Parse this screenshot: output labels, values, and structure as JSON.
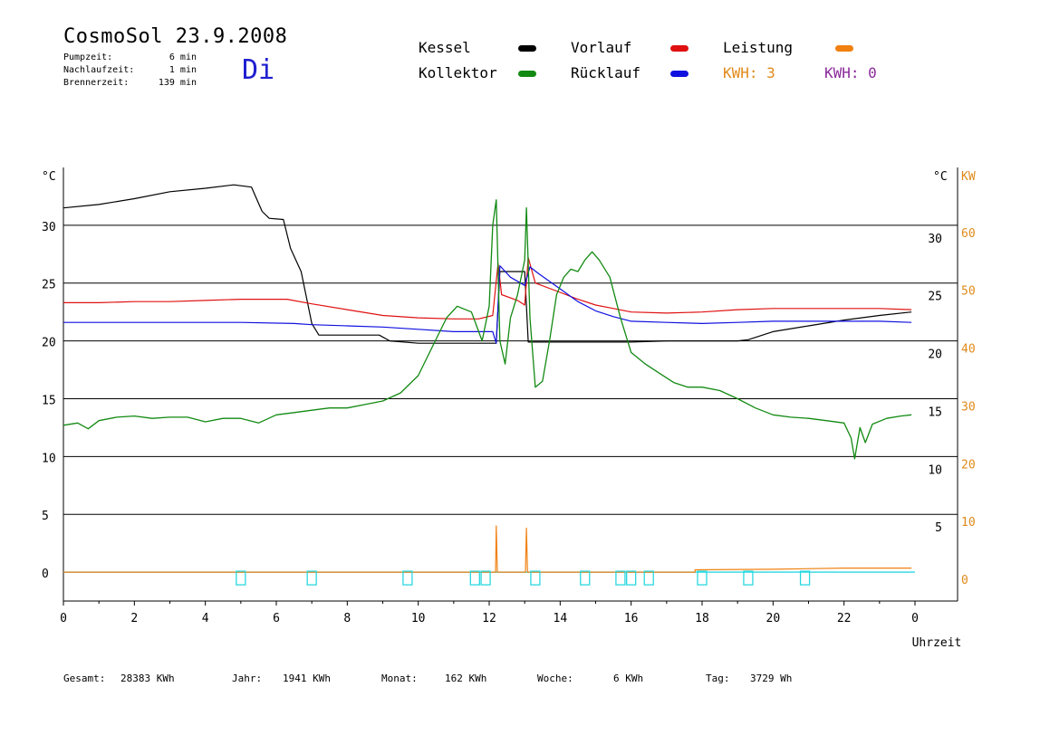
{
  "header": {
    "title": "CosmoSol 23.9.2008",
    "day": "Di",
    "stats": [
      {
        "label": "Pumpzeit:",
        "value": "6 min"
      },
      {
        "label": "Nachlaufzeit:",
        "value": "1 min"
      },
      {
        "label": "Brennerzeit:",
        "value": "139 min"
      }
    ]
  },
  "legend": {
    "kessel": {
      "label": "Kessel",
      "color": "#000000"
    },
    "kollektor": {
      "label": "Kollektor",
      "color": "#128a12"
    },
    "vorlauf": {
      "label": "Vorlauf",
      "color": "#e01010"
    },
    "ruecklauf": {
      "label": "Rücklauf",
      "color": "#1010e0"
    },
    "leistung": {
      "label": "Leistung",
      "color": "#f08010"
    },
    "kwh1": {
      "label": "KWH: 3",
      "color": "#f08010"
    },
    "kwh2": {
      "label": "KWH: 0",
      "color": "#8a2a9a"
    }
  },
  "footer": {
    "gesamt": {
      "label": "Gesamt:",
      "value": "28383 KWh"
    },
    "jahr": {
      "label": "Jahr:",
      "value": "1941 KWh"
    },
    "monat": {
      "label": "Monat:",
      "value": "162 KWh"
    },
    "woche": {
      "label": "Woche:",
      "value": "6 KWh"
    },
    "tag": {
      "label": "Tag:",
      "value": "3729 Wh"
    }
  },
  "chart_data": {
    "type": "line",
    "xlabel": "Uhrzeit",
    "y_unit_left": "°C",
    "y_unit_right": "°C",
    "y2_unit": "KW",
    "xlim": [
      0,
      24
    ],
    "ylim": [
      -2.5,
      35
    ],
    "y2lim": [
      -5,
      70
    ],
    "grid": "horizontal",
    "x_ticks": [
      "0",
      "2",
      "4",
      "6",
      "8",
      "10",
      "12",
      "14",
      "16",
      "18",
      "20",
      "22",
      "0"
    ],
    "y_ticks": [
      0,
      5,
      10,
      15,
      20,
      25,
      30
    ],
    "y2_ticks": [
      0,
      10,
      20,
      30,
      40,
      50,
      60
    ],
    "series": [
      {
        "key": "kessel",
        "color": "#000000",
        "points": [
          [
            0,
            31.5
          ],
          [
            1,
            31.8
          ],
          [
            2,
            32.3
          ],
          [
            3,
            32.9
          ],
          [
            4,
            33.2
          ],
          [
            4.8,
            33.5
          ],
          [
            5.3,
            33.3
          ],
          [
            5.6,
            31.2
          ],
          [
            5.8,
            30.6
          ],
          [
            6.2,
            30.5
          ],
          [
            6.4,
            28
          ],
          [
            6.7,
            26
          ],
          [
            7.0,
            21.5
          ],
          [
            7.2,
            20.5
          ],
          [
            8,
            20.5
          ],
          [
            8.9,
            20.5
          ],
          [
            9.2,
            20
          ],
          [
            10,
            19.8
          ],
          [
            11,
            19.8
          ],
          [
            12,
            19.8
          ],
          [
            12.2,
            19.8
          ],
          [
            12.3,
            26
          ],
          [
            13.0,
            26
          ],
          [
            13.1,
            19.9
          ],
          [
            13.2,
            19.9
          ],
          [
            14,
            19.9
          ],
          [
            15,
            19.9
          ],
          [
            16,
            19.9
          ],
          [
            17,
            20
          ],
          [
            18,
            20
          ],
          [
            19,
            20
          ],
          [
            19.3,
            20.1
          ],
          [
            20,
            20.8
          ],
          [
            21,
            21.3
          ],
          [
            22,
            21.8
          ],
          [
            23,
            22.2
          ],
          [
            23.9,
            22.5
          ]
        ]
      },
      {
        "key": "vorlauf",
        "color": "#e01010",
        "points": [
          [
            0,
            23.3
          ],
          [
            1,
            23.3
          ],
          [
            2,
            23.4
          ],
          [
            3,
            23.4
          ],
          [
            4,
            23.5
          ],
          [
            5,
            23.6
          ],
          [
            6.3,
            23.6
          ],
          [
            7,
            23.2
          ],
          [
            8,
            22.7
          ],
          [
            9,
            22.2
          ],
          [
            10,
            22
          ],
          [
            11,
            21.9
          ],
          [
            11.7,
            21.9
          ],
          [
            12.1,
            22.2
          ],
          [
            12.25,
            26.7
          ],
          [
            12.35,
            24
          ],
          [
            12.8,
            23.5
          ],
          [
            13.0,
            23.1
          ],
          [
            13.1,
            27.2
          ],
          [
            13.3,
            25
          ],
          [
            14,
            24.2
          ],
          [
            14.5,
            23.6
          ],
          [
            15,
            23.1
          ],
          [
            15.5,
            22.8
          ],
          [
            16,
            22.5
          ],
          [
            17,
            22.4
          ],
          [
            18,
            22.5
          ],
          [
            19,
            22.7
          ],
          [
            20,
            22.8
          ],
          [
            21,
            22.8
          ],
          [
            22,
            22.8
          ],
          [
            23,
            22.8
          ],
          [
            23.9,
            22.7
          ]
        ]
      },
      {
        "key": "ruecklauf",
        "color": "#1010e0",
        "points": [
          [
            0,
            21.6
          ],
          [
            1,
            21.6
          ],
          [
            2,
            21.6
          ],
          [
            3,
            21.6
          ],
          [
            4,
            21.6
          ],
          [
            5,
            21.6
          ],
          [
            6.5,
            21.5
          ],
          [
            7,
            21.4
          ],
          [
            8,
            21.3
          ],
          [
            9,
            21.2
          ],
          [
            10,
            21
          ],
          [
            11,
            20.8
          ],
          [
            11.8,
            20.8
          ],
          [
            12.1,
            20.8
          ],
          [
            12.2,
            19.8
          ],
          [
            12.3,
            26.5
          ],
          [
            12.6,
            25.5
          ],
          [
            13.0,
            24.8
          ],
          [
            13.15,
            26.4
          ],
          [
            13.4,
            25.8
          ],
          [
            14,
            24.5
          ],
          [
            14.5,
            23.4
          ],
          [
            15,
            22.6
          ],
          [
            15.5,
            22.1
          ],
          [
            16,
            21.7
          ],
          [
            17,
            21.6
          ],
          [
            18,
            21.5
          ],
          [
            19,
            21.6
          ],
          [
            20,
            21.7
          ],
          [
            21,
            21.7
          ],
          [
            22,
            21.7
          ],
          [
            23,
            21.7
          ],
          [
            23.9,
            21.6
          ]
        ]
      },
      {
        "key": "kollektor",
        "color": "#128a12",
        "points": [
          [
            0,
            12.7
          ],
          [
            0.4,
            12.9
          ],
          [
            0.7,
            12.4
          ],
          [
            1,
            13.1
          ],
          [
            1.5,
            13.4
          ],
          [
            2,
            13.5
          ],
          [
            2.5,
            13.3
          ],
          [
            3,
            13.4
          ],
          [
            3.5,
            13.4
          ],
          [
            4,
            13
          ],
          [
            4.5,
            13.3
          ],
          [
            5,
            13.3
          ],
          [
            5.5,
            12.9
          ],
          [
            6,
            13.6
          ],
          [
            6.5,
            13.8
          ],
          [
            7,
            14
          ],
          [
            7.5,
            14.2
          ],
          [
            8,
            14.2
          ],
          [
            8.5,
            14.5
          ],
          [
            9,
            14.8
          ],
          [
            9.5,
            15.5
          ],
          [
            10,
            17
          ],
          [
            10.4,
            19.5
          ],
          [
            10.8,
            22
          ],
          [
            11.1,
            23
          ],
          [
            11.5,
            22.5
          ],
          [
            11.8,
            20
          ],
          [
            12.0,
            23
          ],
          [
            12.1,
            30
          ],
          [
            12.2,
            32.2
          ],
          [
            12.3,
            20
          ],
          [
            12.45,
            18
          ],
          [
            12.6,
            22
          ],
          [
            12.8,
            24
          ],
          [
            13.0,
            27
          ],
          [
            13.05,
            31.5
          ],
          [
            13.15,
            22
          ],
          [
            13.3,
            16
          ],
          [
            13.5,
            16.5
          ],
          [
            13.7,
            20
          ],
          [
            13.9,
            24
          ],
          [
            14.1,
            25.5
          ],
          [
            14.3,
            26.2
          ],
          [
            14.5,
            26
          ],
          [
            14.7,
            27
          ],
          [
            14.9,
            27.7
          ],
          [
            15.1,
            27
          ],
          [
            15.4,
            25.5
          ],
          [
            15.7,
            22
          ],
          [
            16.0,
            19
          ],
          [
            16.4,
            18
          ],
          [
            16.8,
            17.2
          ],
          [
            17.2,
            16.4
          ],
          [
            17.6,
            16
          ],
          [
            18,
            16
          ],
          [
            18.5,
            15.7
          ],
          [
            19,
            15
          ],
          [
            19.5,
            14.2
          ],
          [
            20,
            13.6
          ],
          [
            20.5,
            13.4
          ],
          [
            21,
            13.3
          ],
          [
            21.5,
            13.1
          ],
          [
            22,
            12.9
          ],
          [
            22.2,
            11.6
          ],
          [
            22.3,
            9.8
          ],
          [
            22.45,
            12.5
          ],
          [
            22.6,
            11.2
          ],
          [
            22.8,
            12.8
          ],
          [
            23.2,
            13.3
          ],
          [
            23.6,
            13.5
          ],
          [
            23.9,
            13.6
          ]
        ]
      },
      {
        "key": "leistung",
        "color": "#f08010",
        "axis": "y2",
        "points": [
          [
            0,
            0
          ],
          [
            12.18,
            0
          ],
          [
            12.2,
            8
          ],
          [
            12.23,
            0
          ],
          [
            13.02,
            0
          ],
          [
            13.05,
            7.6
          ],
          [
            13.08,
            0
          ],
          [
            17.8,
            0
          ],
          [
            17.8,
            0.4
          ],
          [
            20,
            0.5
          ],
          [
            22,
            0.7
          ],
          [
            23.9,
            0.7
          ]
        ]
      }
    ],
    "pump_markers": [
      5.0,
      7.0,
      9.7,
      11.6,
      11.9,
      13.3,
      14.7,
      15.7,
      16.0,
      16.5,
      18.0,
      19.3,
      20.9
    ]
  }
}
